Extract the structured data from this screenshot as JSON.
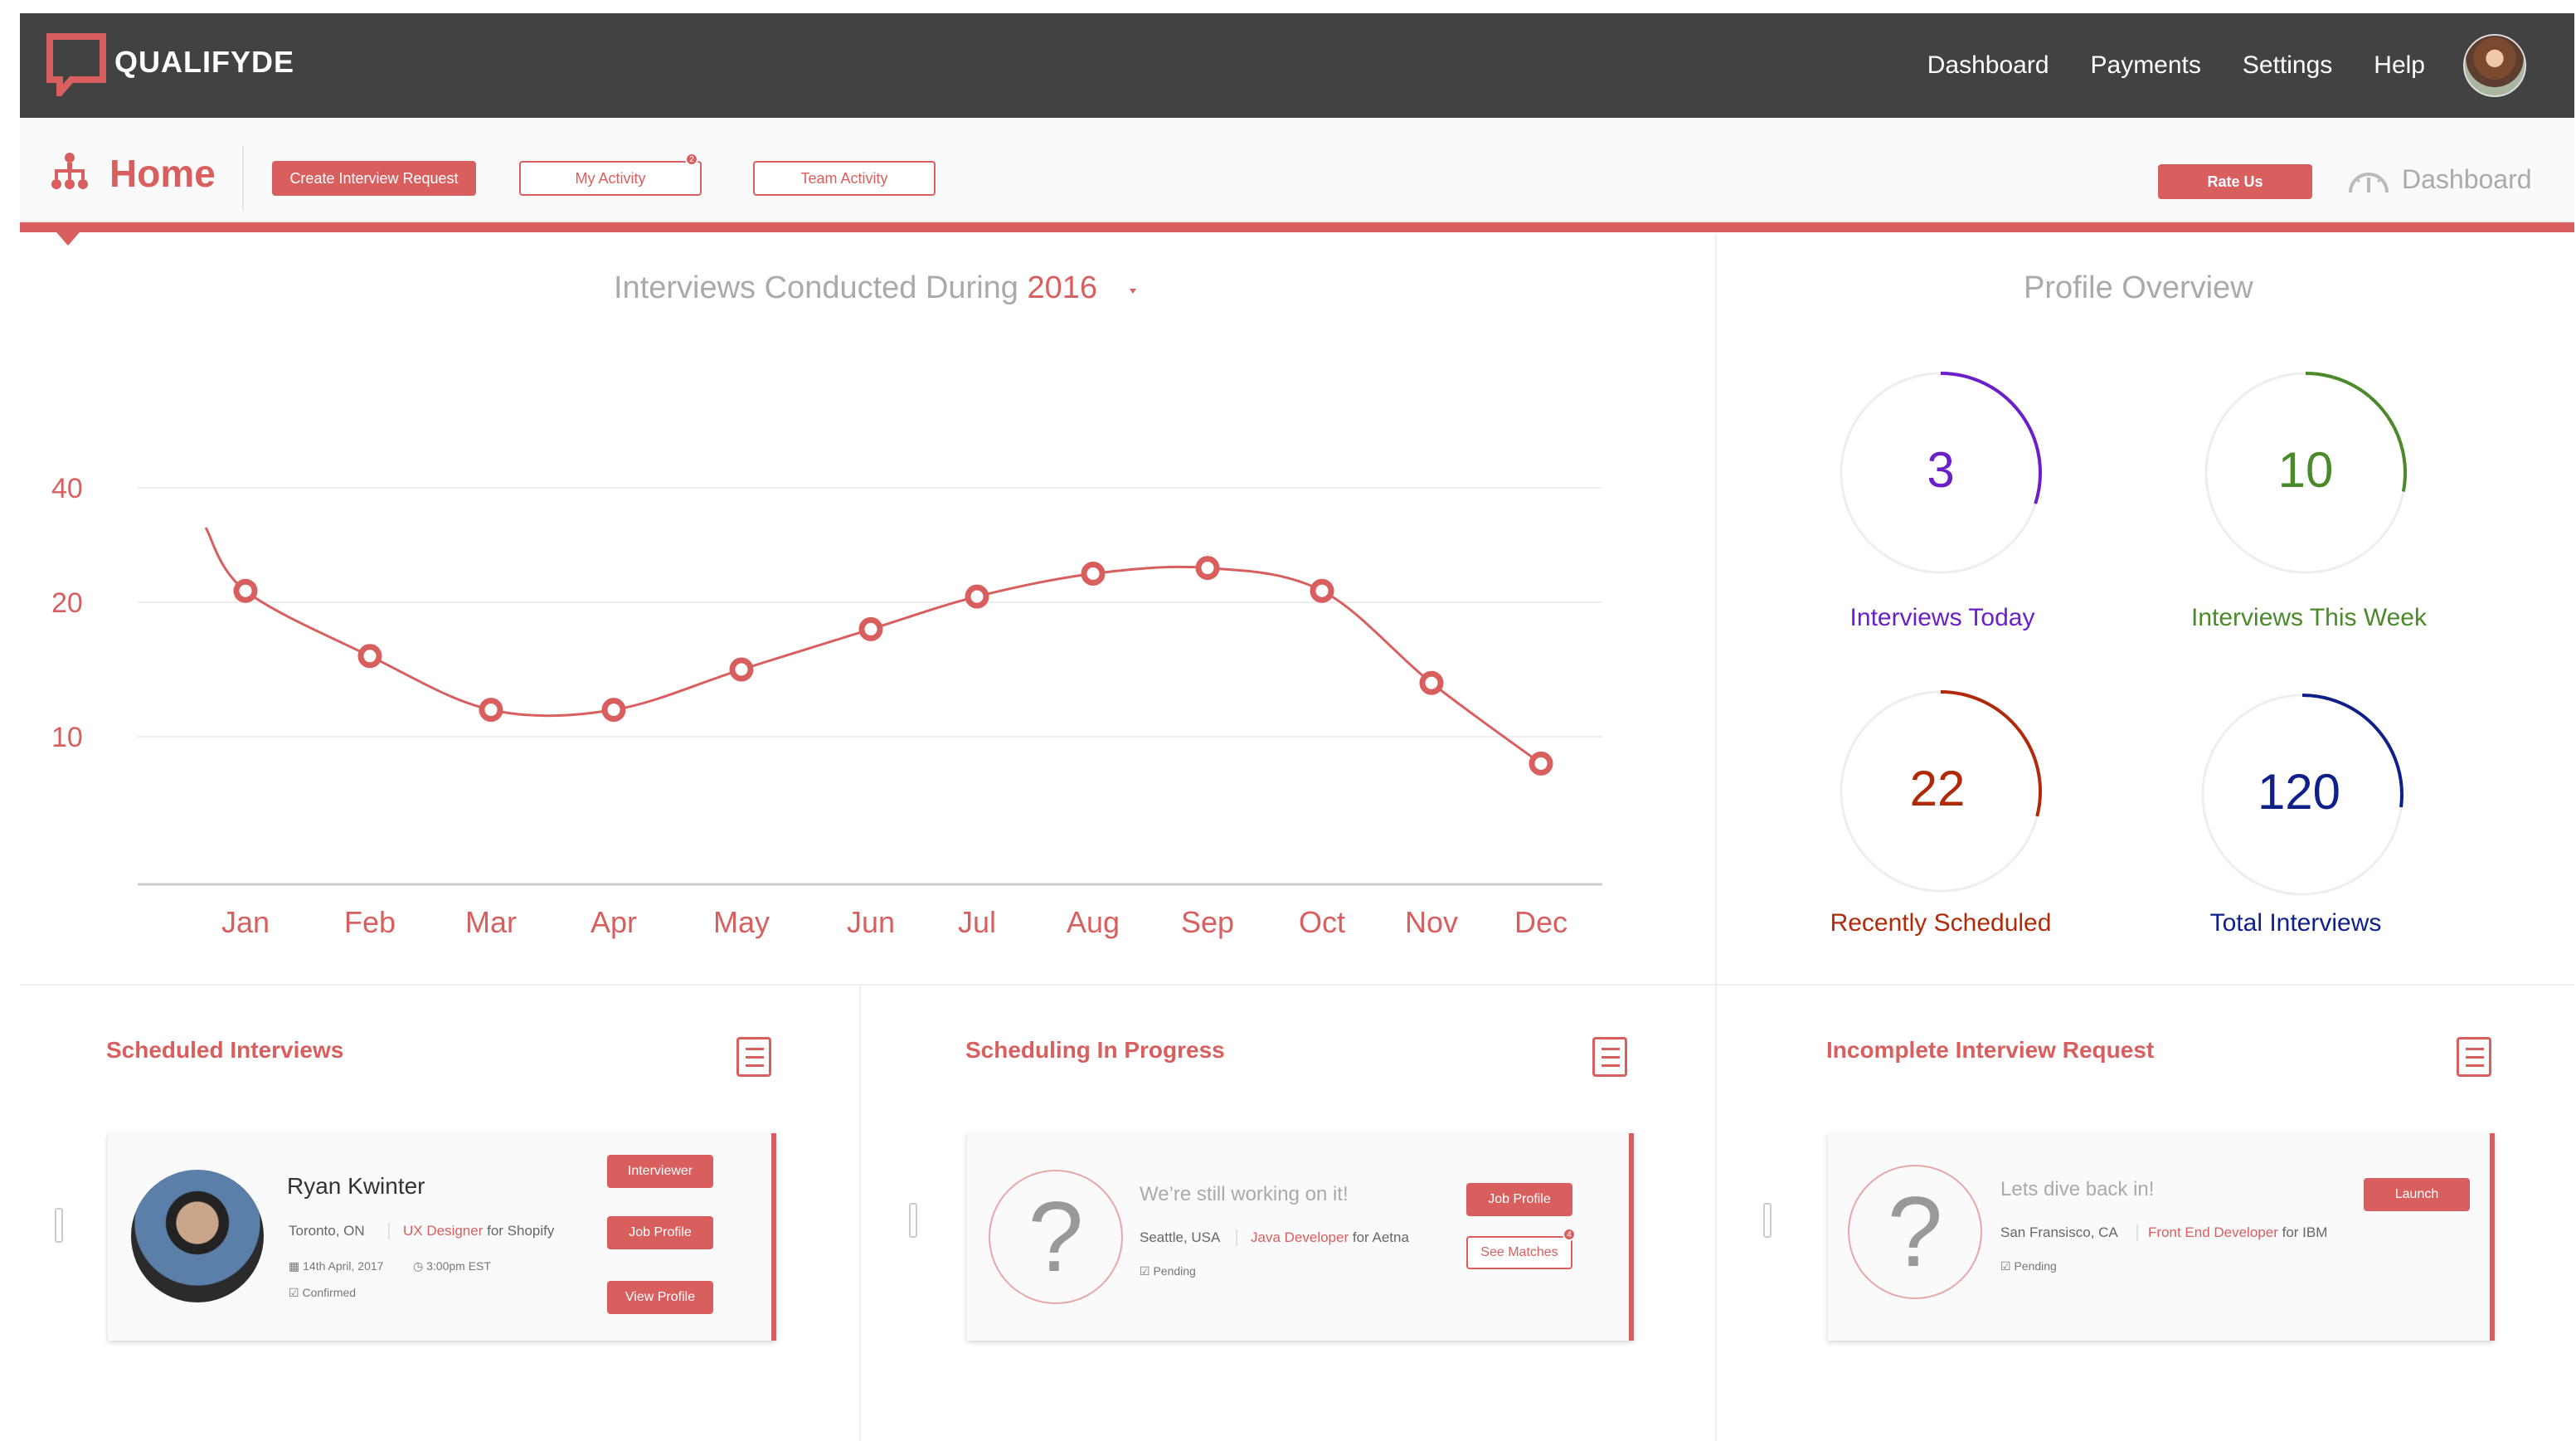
{
  "header": {
    "brand": "QUALIFYDE",
    "nav": [
      "Dashboard",
      "Payments",
      "Settings",
      "Help"
    ]
  },
  "subheader": {
    "title": "Home",
    "create_btn": "Create Interview Request",
    "my_activity_btn": "My Activity",
    "my_activity_badge": "2",
    "team_activity_btn": "Team Activity",
    "rate_btn": "Rate Us",
    "dashboard_link": "Dashboard"
  },
  "chart_header": {
    "title": "Interviews Conducted During",
    "year": "2016"
  },
  "chart_data": {
    "type": "line",
    "categories": [
      "Jan",
      "Feb",
      "Mar",
      "Apr",
      "May",
      "Jun",
      "Jul",
      "Aug",
      "Sep",
      "Oct",
      "Nov",
      "Dec"
    ],
    "values": [
      22,
      16,
      12,
      12,
      15,
      18,
      21,
      25,
      26,
      22,
      14,
      8
    ],
    "yticks": [
      10,
      20,
      40
    ],
    "color": "#d95f5f"
  },
  "profile": {
    "title": "Profile Overview",
    "stats": [
      {
        "value": "3",
        "label": "Interviews Today",
        "color": "#6a1fc9"
      },
      {
        "value": "10",
        "label": "Interviews This Week",
        "color": "#4a8a2a"
      },
      {
        "value": "22",
        "label": "Recently Scheduled",
        "color": "#b02a0a"
      },
      {
        "value": "120",
        "label": "Total Interviews",
        "color": "#10208a"
      }
    ]
  },
  "scheduled": {
    "title": "Scheduled Interviews",
    "name": "Ryan Kwinter",
    "location": "Toronto, ON",
    "role": "UX Designer",
    "company": "for Shopify",
    "date": "14th April, 2017",
    "time": "3:00pm EST",
    "status": "Confirmed",
    "btn_interviewer": "Interviewer",
    "btn_job": "Job Profile",
    "btn_view": "View Profile"
  },
  "progress": {
    "title": "Scheduling In Progress",
    "message": "We’re still working on it!",
    "location": "Seattle, USA",
    "role": "Java Developer",
    "company": "for Aetna",
    "status": "Pending",
    "btn_job": "Job Profile",
    "btn_matches": "See Matches",
    "badge": "4"
  },
  "incomplete": {
    "title": "Incomplete Interview Request",
    "message": "Lets dive back in!",
    "location": "San Fransisco, CA",
    "role": "Front End Developer",
    "company": "for IBM",
    "status": "Pending",
    "btn_launch": "Launch"
  }
}
